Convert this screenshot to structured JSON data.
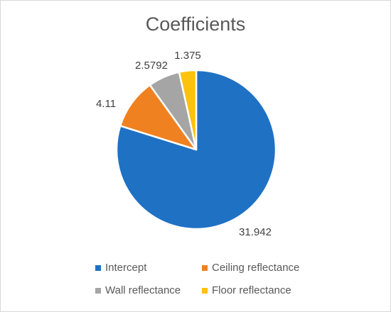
{
  "chart_data": {
    "type": "pie",
    "title": "Coefficients",
    "categories": [
      "Intercept",
      "Ceiling reflectance",
      "Wall reflectance",
      "Floor reflectance"
    ],
    "values": [
      31.942,
      4.11,
      2.5792,
      1.375
    ],
    "value_labels": [
      "31.942",
      "4.11",
      "2.5792",
      "1.375"
    ],
    "colors": [
      "#1f71c4",
      "#f08120",
      "#a5a5a5",
      "#fcc20d"
    ],
    "legend_position": "bottom",
    "start_angle": "12 o'clock, clockwise"
  }
}
